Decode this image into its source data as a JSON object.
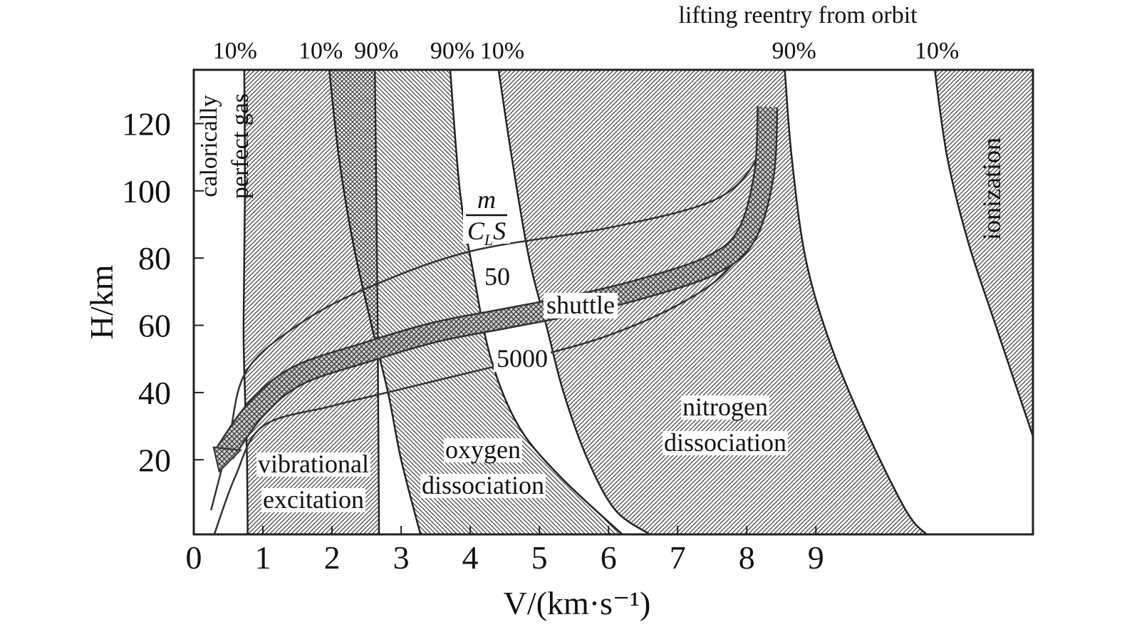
{
  "chart_data": {
    "type": "band",
    "title": "lifting reentry from orbit",
    "xlabel": "V/(km·s⁻¹)",
    "ylabel": "H/km",
    "xlim": [
      0,
      12.14
    ],
    "ylim": [
      -2.2,
      136
    ],
    "xticks": [
      0,
      1,
      2,
      3,
      4,
      5,
      6,
      7,
      8,
      9
    ],
    "yticks": [
      20,
      40,
      60,
      80,
      100,
      120
    ],
    "regions": [
      {
        "label_lines": [
          "vibrational",
          "excitation"
        ],
        "color": "#444444",
        "hatch": "/",
        "left": {
          "label": "10%",
          "x": [
            0.73,
            0.74,
            0.72,
            0.74,
            0.77,
            0.78
          ],
          "y": [
            136,
            100,
            60,
            40,
            20,
            -2.2
          ]
        },
        "right": {
          "label": "90%",
          "x": [
            2.62,
            2.64,
            2.66,
            2.68
          ],
          "y": [
            136,
            100,
            60,
            -2.2
          ]
        }
      },
      {
        "label_lines": [
          "oxygen",
          "dissociation"
        ],
        "color": "#444444",
        "hatch": "\\",
        "left": {
          "label": "10%",
          "x": [
            1.96,
            2.1,
            2.3,
            2.56,
            2.81,
            3.0,
            3.28
          ],
          "y": [
            136,
            110,
            85,
            61,
            40,
            20,
            -2.2
          ]
        },
        "right": {
          "label": "90%",
          "x": [
            3.71,
            3.85,
            4.05,
            4.3,
            4.7,
            5.3,
            6.2
          ],
          "y": [
            136,
            100,
            75,
            50,
            30,
            15,
            -2.2
          ]
        }
      },
      {
        "label_lines": [
          "nitrogen",
          "dissociation"
        ],
        "color": "#444444",
        "hatch": "/",
        "left": {
          "label": "10%",
          "x": [
            4.41,
            4.6,
            4.85,
            5.1,
            5.35,
            5.7,
            6.1,
            6.6
          ],
          "y": [
            136,
            110,
            80,
            60,
            40,
            20,
            5,
            -2.2
          ]
        },
        "right": {
          "label": "90%",
          "x": [
            8.55,
            8.65,
            8.85,
            9.2,
            9.7,
            10.3,
            10.6
          ],
          "y": [
            136,
            110,
            80,
            55,
            30,
            5,
            -2.2
          ]
        }
      },
      {
        "label_lines": [
          "ionization"
        ],
        "color": "#444444",
        "hatch": "/",
        "left": {
          "label": "10%",
          "x": [
            10.72,
            10.9,
            11.2,
            11.6,
            12.14
          ],
          "y": [
            136,
            110,
            85,
            60,
            27
          ]
        },
        "right": {
          "x": [
            12.14,
            12.14
          ],
          "y": [
            136,
            27
          ]
        }
      }
    ],
    "series": [
      {
        "name": "50",
        "color": "#333333",
        "style": "line",
        "x": [
          0.25,
          0.5,
          0.75,
          1.5,
          2.5,
          4,
          6,
          7.5,
          8.1,
          8.3
        ],
        "values": [
          5,
          25,
          46,
          60,
          71,
          82,
          89,
          97,
          108,
          122
        ]
      },
      {
        "name": "5000",
        "color": "#333333",
        "style": "line",
        "x": [
          0.3,
          0.6,
          1.0,
          2,
          3,
          4,
          5,
          6,
          7,
          7.7,
          8.1,
          8.25
        ],
        "values": [
          -2,
          15,
          30,
          36,
          41,
          46,
          51,
          57,
          66,
          76,
          90,
          120
        ]
      },
      {
        "name": "shuttle",
        "color": "#333333",
        "style": "band",
        "x": [
          0.45,
          0.9,
          1.5,
          2.5,
          3.5,
          4.5,
          5.5,
          6.5,
          7.5,
          8.0,
          8.25,
          8.3
        ],
        "values": [
          22,
          35,
          45,
          52,
          58,
          62,
          66,
          71,
          78,
          87,
          105,
          125
        ]
      }
    ],
    "parameter_label": {
      "numerator": "m",
      "denominator": [
        "C",
        "L",
        "S"
      ]
    },
    "annotation_lines": [
      "calorically",
      "perfect gas"
    ]
  }
}
